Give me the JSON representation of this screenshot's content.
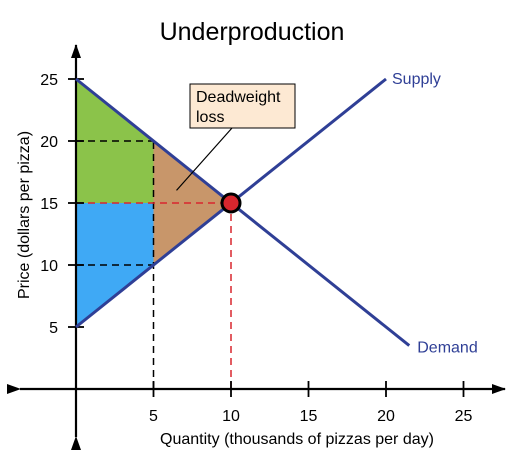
{
  "colors": {
    "curve": "#2f3f96",
    "equilibrium_fill": "#d9262e",
    "deadweight_fill": "#c8966a",
    "producer_fill": "#3fa9f5",
    "consumer_fill": "#8bc34a",
    "reference_dashed": "#000000",
    "equilibrium_dashed": "#d9262e",
    "annotation_box": "#fde9d3"
  },
  "chart_data": {
    "type": "line",
    "title": "Underproduction",
    "xlabel": "Quantity (thousands of pizzas per day)",
    "ylabel": "Price (dollars per pizza)",
    "xlim": [
      0,
      27
    ],
    "ylim": [
      0,
      27
    ],
    "x_ticks": [
      5,
      10,
      15,
      20,
      25
    ],
    "y_ticks": [
      5,
      10,
      15,
      20,
      25
    ],
    "x_tick_labels": [
      "5",
      "10",
      "15",
      "20",
      "25"
    ],
    "y_tick_labels": [
      "5",
      "10",
      "15",
      "20",
      "25"
    ],
    "grid": false,
    "series": [
      {
        "name": "Supply",
        "x": [
          0,
          20
        ],
        "y": [
          5,
          25
        ]
      },
      {
        "name": "Demand",
        "x": [
          0,
          21.5
        ],
        "y": [
          25,
          3.5
        ]
      }
    ],
    "equilibrium": {
      "x": 10,
      "y": 15
    },
    "regions": [
      {
        "id": "consumer",
        "points": [
          [
            0,
            25
          ],
          [
            5,
            20
          ],
          [
            5,
            15
          ],
          [
            0,
            15
          ]
        ]
      },
      {
        "id": "producer",
        "points": [
          [
            0,
            15
          ],
          [
            5,
            15
          ],
          [
            5,
            10
          ],
          [
            0,
            5
          ]
        ]
      },
      {
        "id": "deadweight",
        "points": [
          [
            5,
            20
          ],
          [
            10,
            15
          ],
          [
            5,
            10
          ]
        ]
      }
    ],
    "dashed_lines": [
      {
        "id": "q5-vertical",
        "from": [
          5,
          0
        ],
        "to": [
          5,
          20
        ],
        "color": "reference"
      },
      {
        "id": "p20-horizontal",
        "from": [
          0,
          20
        ],
        "to": [
          5,
          20
        ],
        "color": "reference"
      },
      {
        "id": "p10-horizontal",
        "from": [
          0,
          10
        ],
        "to": [
          5,
          10
        ],
        "color": "reference"
      },
      {
        "id": "p15-horizontal",
        "from": [
          0,
          15
        ],
        "to": [
          10,
          15
        ],
        "color": "equilibrium"
      },
      {
        "id": "q10-vertical",
        "from": [
          10,
          0
        ],
        "to": [
          10,
          15
        ],
        "color": "equilibrium"
      }
    ],
    "annotation": {
      "text_lines": [
        "Deadweight",
        "loss"
      ],
      "points_to": [
        7,
        16.5
      ]
    }
  }
}
